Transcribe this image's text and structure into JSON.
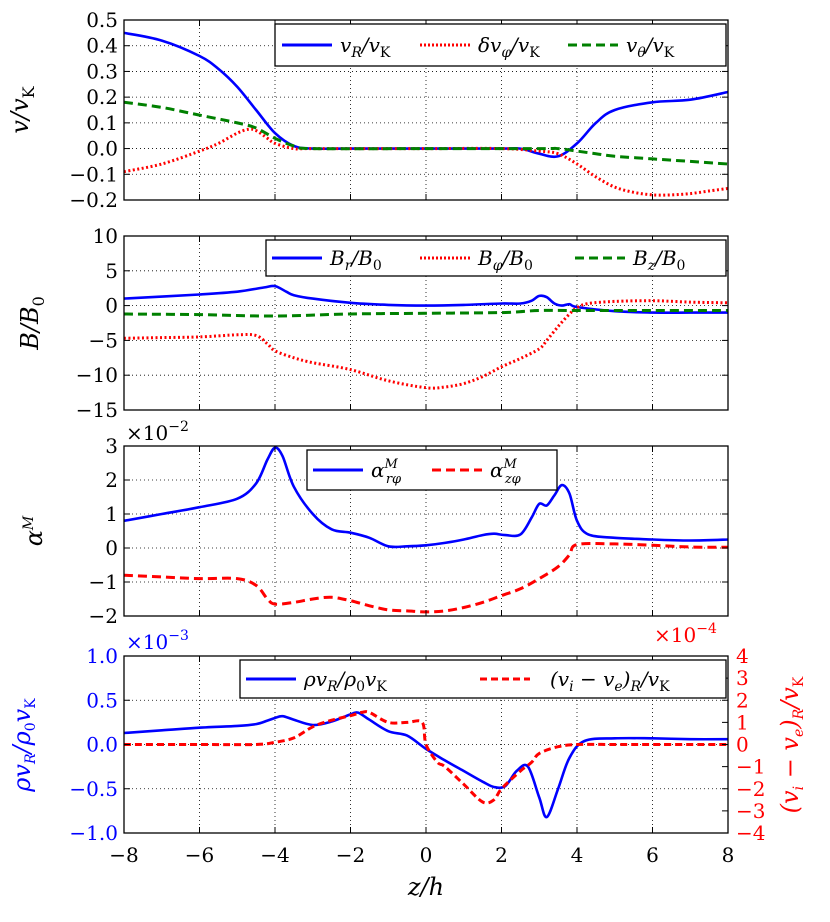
{
  "figure": {
    "xlabel": "z/h",
    "xticks": [
      "−8",
      "−6",
      "−4",
      "−2",
      "0",
      "2",
      "4",
      "6",
      "8"
    ]
  },
  "chart_data": [
    {
      "type": "line",
      "ylabel": "v/vK",
      "xlim": [
        -8,
        8
      ],
      "ylim": [
        -0.2,
        0.5
      ],
      "yticks": [
        -0.2,
        -0.1,
        0.0,
        0.1,
        0.2,
        0.3,
        0.4,
        0.5
      ],
      "ytick_labels": [
        "−0.2",
        "−0.1",
        "0.0",
        "0.1",
        "0.2",
        "0.3",
        "0.4",
        "0.5"
      ],
      "series": [
        {
          "name": "vR/vK",
          "color": "#0000ff",
          "style": "solid",
          "x": [
            -8,
            -7,
            -6,
            -5.5,
            -5,
            -4.5,
            -4,
            -3.5,
            -3,
            -2,
            0,
            2,
            2.5,
            3,
            3.5,
            4,
            4.5,
            5,
            6,
            7,
            8
          ],
          "y": [
            0.45,
            0.42,
            0.36,
            0.31,
            0.24,
            0.15,
            0.06,
            0.01,
            0.0,
            0.0,
            0.0,
            0.0,
            0.0,
            -0.02,
            -0.03,
            0.02,
            0.1,
            0.15,
            0.18,
            0.19,
            0.22
          ]
        },
        {
          "name": "δvφ/vK",
          "color": "#ff0000",
          "style": "dotted",
          "x": [
            -8,
            -7,
            -6,
            -5.5,
            -5,
            -4.7,
            -4.5,
            -4.2,
            -4,
            -3.5,
            -3,
            0,
            2,
            3,
            3.5,
            4,
            4.5,
            5,
            5.5,
            6,
            6.5,
            7,
            7.5,
            8
          ],
          "y": [
            -0.09,
            -0.06,
            -0.01,
            0.02,
            0.06,
            0.075,
            0.07,
            0.04,
            0.02,
            0.0,
            0.0,
            0.0,
            0.0,
            -0.01,
            -0.02,
            -0.06,
            -0.11,
            -0.15,
            -0.17,
            -0.18,
            -0.18,
            -0.175,
            -0.165,
            -0.155
          ]
        },
        {
          "name": "vθ/vK",
          "color": "#008000",
          "style": "dashed",
          "x": [
            -8,
            -7,
            -6,
            -5,
            -4.5,
            -4,
            -3.5,
            -3,
            0,
            3,
            3.5,
            4,
            4.5,
            5,
            6,
            7,
            8
          ],
          "y": [
            0.18,
            0.16,
            0.13,
            0.1,
            0.08,
            0.04,
            0.01,
            0.0,
            0.0,
            0.0,
            0.0,
            -0.01,
            -0.02,
            -0.03,
            -0.04,
            -0.05,
            -0.06
          ]
        }
      ],
      "legend": {
        "position": "top-right",
        "labels": [
          "vR/vK",
          "δvφ/vK",
          "vθ/vK"
        ]
      }
    },
    {
      "type": "line",
      "ylabel": "B/B0",
      "xlim": [
        -8,
        8
      ],
      "ylim": [
        -15,
        10
      ],
      "yticks": [
        -15,
        -10,
        -5,
        0,
        5,
        10
      ],
      "ytick_labels": [
        "−15",
        "−10",
        "−5",
        "0",
        "5",
        "10"
      ],
      "series": [
        {
          "name": "Br/B0",
          "color": "#0000ff",
          "style": "solid",
          "x": [
            -8,
            -6,
            -5,
            -4.3,
            -4,
            -3.7,
            -3.5,
            -3,
            -2,
            -1,
            0,
            1,
            2,
            2.5,
            2.8,
            3.0,
            3.2,
            3.4,
            3.6,
            3.8,
            4,
            5,
            6,
            7,
            8
          ],
          "y": [
            1.0,
            1.6,
            2.0,
            2.6,
            2.8,
            2.0,
            1.5,
            1.0,
            0.4,
            0.1,
            0.0,
            0.1,
            0.3,
            0.3,
            0.7,
            1.4,
            1.2,
            0.3,
            0.0,
            0.2,
            -0.2,
            -0.8,
            -1.0,
            -1.0,
            -1.0
          ]
        },
        {
          "name": "Bφ/B0",
          "color": "#ff0000",
          "style": "dotted",
          "x": [
            -8,
            -7,
            -6,
            -5,
            -4.5,
            -4.2,
            -4,
            -3.5,
            -3,
            -2,
            -1,
            0,
            0.5,
            1,
            1.5,
            2,
            2.5,
            3,
            3.2,
            3.5,
            3.8,
            4,
            4.3,
            5,
            6,
            7,
            8
          ],
          "y": [
            -4.7,
            -4.6,
            -4.5,
            -4.2,
            -4.3,
            -5.5,
            -6.5,
            -7.5,
            -8.2,
            -9.2,
            -10.8,
            -11.8,
            -11.7,
            -11.2,
            -10.2,
            -8.8,
            -7.6,
            -6.2,
            -5.0,
            -3.0,
            -1.2,
            -0.3,
            0.3,
            0.6,
            0.7,
            0.5,
            0.4
          ]
        },
        {
          "name": "Bz/B0",
          "color": "#008000",
          "style": "dashed",
          "x": [
            -8,
            -6,
            -4,
            -2,
            0,
            2,
            3,
            4,
            6,
            8
          ],
          "y": [
            -1.2,
            -1.3,
            -1.5,
            -1.2,
            -1.1,
            -1.0,
            -0.7,
            -0.7,
            -0.7,
            -0.7
          ]
        }
      ],
      "legend": {
        "position": "top-right",
        "labels": [
          "Br/B0",
          "Bφ/B0",
          "Bz/B0"
        ]
      }
    },
    {
      "type": "line",
      "ylabel": "αM",
      "multiplier": "×10",
      "multiplier_exp": "−2",
      "xlim": [
        -8,
        8
      ],
      "ylim": [
        -2,
        3
      ],
      "yticks": [
        -2,
        -1,
        0,
        1,
        2,
        3
      ],
      "ytick_labels": [
        "−2",
        "−1",
        "0",
        "1",
        "2",
        "3"
      ],
      "series": [
        {
          "name": "αrφM",
          "color": "#0000ff",
          "style": "solid",
          "x": [
            -8,
            -7,
            -6,
            -5,
            -4.5,
            -4.2,
            -4.0,
            -3.8,
            -3.5,
            -3,
            -2.5,
            -2,
            -1.5,
            -1,
            -0.5,
            0,
            0.5,
            1,
            1.5,
            1.8,
            2.1,
            2.5,
            2.8,
            3.0,
            3.2,
            3.4,
            3.6,
            3.8,
            4.0,
            4.3,
            5,
            6,
            7,
            8
          ],
          "y": [
            0.8,
            1.0,
            1.2,
            1.45,
            1.9,
            2.6,
            2.95,
            2.7,
            1.8,
            1.0,
            0.55,
            0.45,
            0.3,
            0.05,
            0.05,
            0.08,
            0.15,
            0.25,
            0.38,
            0.42,
            0.38,
            0.4,
            0.9,
            1.3,
            1.25,
            1.55,
            1.85,
            1.6,
            0.8,
            0.4,
            0.3,
            0.25,
            0.22,
            0.25
          ]
        },
        {
          "name": "αzφM",
          "color": "#ff0000",
          "style": "dashed",
          "x": [
            -8,
            -7,
            -6,
            -5,
            -4.5,
            -4.2,
            -4,
            -3.5,
            -3,
            -2.5,
            -2,
            -1.5,
            -1,
            -0.5,
            0,
            0.5,
            1,
            1.5,
            2,
            2.5,
            3,
            3.5,
            3.8,
            4,
            5,
            6,
            7,
            8
          ],
          "y": [
            -0.8,
            -0.85,
            -0.9,
            -0.9,
            -1.1,
            -1.5,
            -1.65,
            -1.6,
            -1.5,
            -1.45,
            -1.55,
            -1.7,
            -1.82,
            -1.85,
            -1.88,
            -1.85,
            -1.75,
            -1.6,
            -1.4,
            -1.2,
            -0.9,
            -0.55,
            -0.2,
            0.1,
            0.12,
            0.08,
            0.03,
            0.02
          ]
        }
      ],
      "legend": {
        "position": "top-right",
        "labels": [
          "αrφM",
          "αzφM"
        ]
      }
    },
    {
      "type": "line",
      "ylabel": "ρvR/ρ0vK",
      "y2label": "(vi − ve)R/vK",
      "multiplier": "×10",
      "multiplier_exp": "−3",
      "multiplier2": "×10",
      "multiplier2_exp": "−4",
      "xlim": [
        -8,
        8
      ],
      "ylim": [
        -1.0,
        1.0
      ],
      "y2lim": [
        -4,
        4
      ],
      "yticks": [
        -1.0,
        -0.5,
        0.0,
        0.5,
        1.0
      ],
      "ytick_labels": [
        "−1.0",
        "−0.5",
        "0.0",
        "0.5",
        "1.0"
      ],
      "y2ticks": [
        -4,
        -3,
        -2,
        -1,
        0,
        1,
        2,
        3,
        4
      ],
      "y2tick_labels": [
        "−4",
        "−3",
        "−2",
        "−1",
        "0",
        "1",
        "2",
        "3",
        "4"
      ],
      "series": [
        {
          "name": "ρvR/ρ0vK",
          "color": "#0000ff",
          "style": "solid",
          "axis": "left",
          "x": [
            -8,
            -7,
            -6,
            -5,
            -4.5,
            -4.2,
            -4,
            -3.8,
            -3.5,
            -3,
            -2.5,
            -2,
            -1.8,
            -1.5,
            -1,
            -0.5,
            0,
            0.5,
            1,
            1.5,
            1.8,
            2.1,
            2.4,
            2.7,
            3.0,
            3.2,
            3.5,
            3.8,
            4.2,
            5,
            6,
            7,
            8
          ],
          "y": [
            0.13,
            0.16,
            0.19,
            0.21,
            0.23,
            0.27,
            0.3,
            0.32,
            0.28,
            0.22,
            0.26,
            0.34,
            0.36,
            0.28,
            0.15,
            0.1,
            -0.05,
            -0.18,
            -0.3,
            -0.42,
            -0.48,
            -0.47,
            -0.3,
            -0.25,
            -0.6,
            -0.82,
            -0.5,
            -0.15,
            0.04,
            0.07,
            0.07,
            0.06,
            0.06
          ]
        },
        {
          "name": "(vi − ve)R/vK",
          "color": "#ff0000",
          "style": "dashed",
          "axis": "right",
          "x": [
            -8,
            -6,
            -4.5,
            -4,
            -3.5,
            -3,
            -2.5,
            -2,
            -1.7,
            -1.5,
            -1,
            -0.5,
            -0.1,
            0,
            0.3,
            0.5,
            1,
            1.5,
            1.8,
            2,
            2.5,
            2.8,
            3,
            3.5,
            4,
            5,
            6,
            8
          ],
          "y": [
            0.0,
            0.0,
            0.0,
            0.1,
            0.3,
            0.8,
            1.1,
            1.3,
            1.45,
            1.45,
            1.0,
            1.0,
            1.0,
            0.0,
            -0.8,
            -1.0,
            -1.8,
            -2.6,
            -2.5,
            -2.0,
            -1.2,
            -0.8,
            -0.4,
            -0.1,
            0.0,
            0.0,
            0.0,
            0.0
          ]
        }
      ],
      "legend": {
        "position": "top-right",
        "labels": [
          "ρvR/ρ0vK",
          "(vi − ve)R/vK"
        ]
      }
    }
  ]
}
